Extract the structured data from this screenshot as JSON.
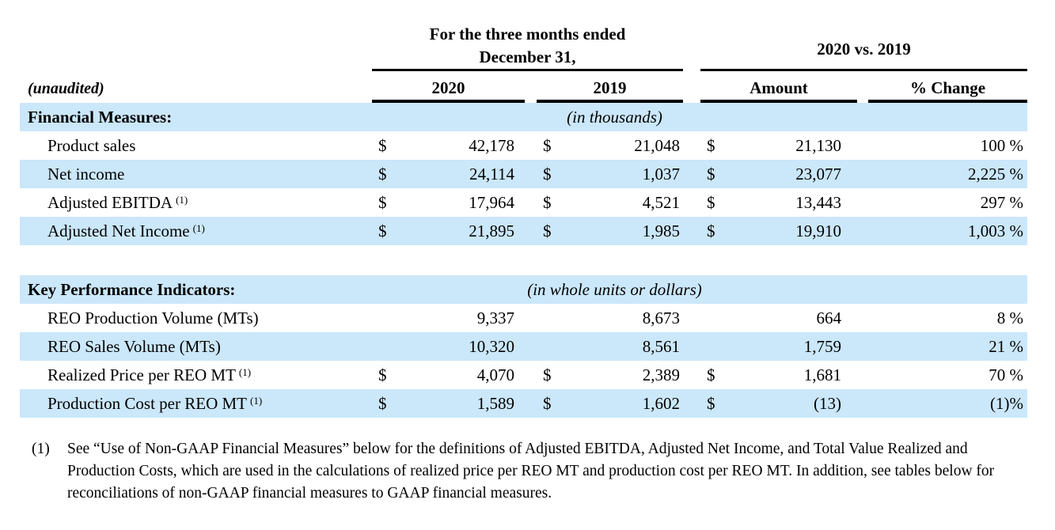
{
  "table": {
    "group_headers": {
      "period": {
        "line1": "For the three months ended",
        "line2": "December 31,"
      },
      "comparison": "2020 vs. 2019"
    },
    "unaudited_label": "(unaudited)",
    "column_headers": {
      "y2020": "2020",
      "y2019": "2019",
      "amount": "Amount",
      "pct_change": "% Change"
    },
    "sections": [
      {
        "title": "Financial Measures:",
        "unit_note": "(in thousands)",
        "rows": [
          {
            "label": "Product sales",
            "sup": "",
            "cur1": "$",
            "v2020": "42,178",
            "cur2": "$",
            "v2019": "21,048",
            "cur3": "$",
            "amount": "21,130",
            "pct": "100 %"
          },
          {
            "label": "Net income",
            "sup": "",
            "cur1": "$",
            "v2020": "24,114",
            "cur2": "$",
            "v2019": "1,037",
            "cur3": "$",
            "amount": "23,077",
            "pct": "2,225 %"
          },
          {
            "label": "Adjusted EBITDA",
            "sup": "(1)",
            "cur1": "$",
            "v2020": "17,964",
            "cur2": "$",
            "v2019": "4,521",
            "cur3": "$",
            "amount": "13,443",
            "pct": "297 %"
          },
          {
            "label": "Adjusted Net Income",
            "sup": "(1)",
            "cur1": "$",
            "v2020": "21,895",
            "cur2": "$",
            "v2019": "1,985",
            "cur3": "$",
            "amount": "19,910",
            "pct": "1,003 %"
          }
        ]
      },
      {
        "title": "Key Performance Indicators:",
        "unit_note": "(in whole units or dollars)",
        "rows": [
          {
            "label": "REO Production Volume (MTs)",
            "sup": "",
            "cur1": "",
            "v2020": "9,337",
            "cur2": "",
            "v2019": "8,673",
            "cur3": "",
            "amount": "664",
            "pct": "8 %"
          },
          {
            "label": "REO Sales Volume (MTs)",
            "sup": "",
            "cur1": "",
            "v2020": "10,320",
            "cur2": "",
            "v2019": "8,561",
            "cur3": "",
            "amount": "1,759",
            "pct": "21 %"
          },
          {
            "label": "Realized Price per REO MT",
            "sup": "(1)",
            "cur1": "$",
            "v2020": "4,070",
            "cur2": "$",
            "v2019": "2,389",
            "cur3": "$",
            "amount": "1,681",
            "pct": "70 %"
          },
          {
            "label": "Production Cost per REO MT",
            "sup": "(1)",
            "cur1": "$",
            "v2020": "1,589",
            "cur2": "$",
            "v2019": "1,602",
            "cur3": "$",
            "amount": "(13)",
            "pct": "(1)%"
          }
        ]
      }
    ],
    "footnote": {
      "marker": "(1)",
      "text": "See “Use of Non-GAAP Financial Measures” below for the definitions of Adjusted EBITDA, Adjusted Net Income, and Total Value Realized and Production Costs, which are used in the calculations of realized price per REO MT and production cost per REO MT. In addition, see tables below for reconciliations of non-GAAP financial measures to GAAP financial measures."
    },
    "colors": {
      "band": "#cbe7fa",
      "text": "#000000",
      "rule": "#000000"
    }
  }
}
